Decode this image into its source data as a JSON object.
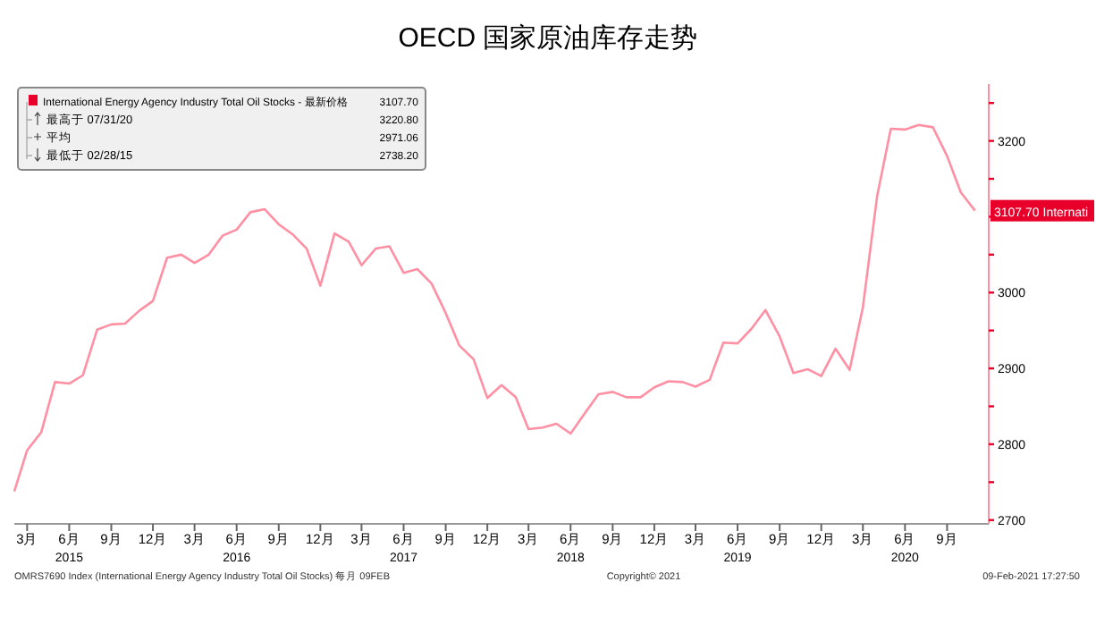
{
  "chart_data": {
    "type": "line",
    "title": "OECD 国家原油库存走势",
    "x": [
      "2015-02",
      "2015-03",
      "2015-04",
      "2015-05",
      "2015-06",
      "2015-07",
      "2015-08",
      "2015-09",
      "2015-10",
      "2015-11",
      "2015-12",
      "2016-01",
      "2016-02",
      "2016-03",
      "2016-04",
      "2016-05",
      "2016-06",
      "2016-07",
      "2016-08",
      "2016-09",
      "2016-10",
      "2016-11",
      "2016-12",
      "2017-01",
      "2017-02",
      "2017-03",
      "2017-04",
      "2017-05",
      "2017-06",
      "2017-07",
      "2017-08",
      "2017-09",
      "2017-10",
      "2017-11",
      "2017-12",
      "2018-01",
      "2018-02",
      "2018-03",
      "2018-04",
      "2018-05",
      "2018-06",
      "2018-07",
      "2018-08",
      "2018-09",
      "2018-10",
      "2018-11",
      "2018-12",
      "2019-01",
      "2019-02",
      "2019-03",
      "2019-04",
      "2019-05",
      "2019-06",
      "2019-07",
      "2019-08",
      "2019-09",
      "2019-10",
      "2019-11",
      "2019-12",
      "2020-01",
      "2020-02",
      "2020-03",
      "2020-04",
      "2020-05",
      "2020-06",
      "2020-07",
      "2020-08",
      "2020-09",
      "2020-10",
      "2020-11"
    ],
    "series": [
      {
        "name": "International Energy Agency Industry Total Oil Stocks - 最新价格",
        "color": "#ff8fa3",
        "values": [
          2738,
          2792,
          2816,
          2882,
          2880,
          2891,
          2951,
          2958,
          2959,
          2976,
          2989,
          3046,
          3050,
          3039,
          3050,
          3075,
          3083,
          3106,
          3110,
          3090,
          3077,
          3058,
          3009,
          3078,
          3067,
          3036,
          3058,
          3061,
          3026,
          3031,
          3012,
          2973,
          2930,
          2912,
          2861,
          2878,
          2862,
          2820,
          2822,
          2827,
          2814,
          2840,
          2866,
          2869,
          2862,
          2862,
          2875,
          2883,
          2882,
          2876,
          2885,
          2934,
          2933,
          2952,
          2977,
          2942,
          2894,
          2899,
          2890,
          2926,
          2898,
          2981,
          3127,
          3216,
          3215,
          3221,
          3218,
          3180,
          3132,
          3108
        ]
      }
    ],
    "xlim": [
      "2015-02",
      "2020-12"
    ],
    "xticks": [
      {
        "value": "2015-03",
        "label": "3月"
      },
      {
        "value": "2015-06",
        "label": "6月"
      },
      {
        "value": "2015-09",
        "label": "9月"
      },
      {
        "value": "2015-12",
        "label": "12月"
      },
      {
        "value": "2016-03",
        "label": "3月"
      },
      {
        "value": "2016-06",
        "label": "6月"
      },
      {
        "value": "2016-09",
        "label": "9月"
      },
      {
        "value": "2016-12",
        "label": "12月"
      },
      {
        "value": "2017-03",
        "label": "3月"
      },
      {
        "value": "2017-06",
        "label": "6月"
      },
      {
        "value": "2017-09",
        "label": "9月"
      },
      {
        "value": "2017-12",
        "label": "12月"
      },
      {
        "value": "2018-03",
        "label": "3月"
      },
      {
        "value": "2018-06",
        "label": "6月"
      },
      {
        "value": "2018-09",
        "label": "9月"
      },
      {
        "value": "2018-12",
        "label": "12月"
      },
      {
        "value": "2019-03",
        "label": "3月"
      },
      {
        "value": "2019-06",
        "label": "6月"
      },
      {
        "value": "2019-09",
        "label": "9月"
      },
      {
        "value": "2019-12",
        "label": "12月"
      },
      {
        "value": "2020-03",
        "label": "3月"
      },
      {
        "value": "2020-06",
        "label": "6月"
      },
      {
        "value": "2020-09",
        "label": "9月"
      }
    ],
    "ylim": [
      2695,
      3275
    ],
    "yticks": [
      2700,
      {
        "value": 2750,
        "label": null
      },
      2800,
      {
        "value": 2850,
        "label": null
      },
      2900,
      {
        "value": 2950,
        "label": null
      },
      3000,
      {
        "value": 3050,
        "label": null
      },
      {
        "value": 3100,
        "label": null
      },
      {
        "value": 3150,
        "label": null
      },
      3200,
      {
        "value": 3250,
        "label": null
      }
    ],
    "grid": false,
    "legend": "top left",
    "marker": "none",
    "line_style": "solid",
    "annotations": [
      "3107.70",
      "最高于 07/31/20",
      "3220.80",
      "平均",
      "2971.06",
      "最低于 02/28/15",
      "2738.20",
      "3107.70 Internati",
      "2015",
      "2016",
      "2017",
      "2018",
      "2019",
      "2020",
      "OMRS7690 Index (International Energy Agency Industry Total Oil Stocks) 每月 09FEB",
      "Copyright© 2021",
      "09-Feb-2021 17:27:50"
    ]
  }
}
